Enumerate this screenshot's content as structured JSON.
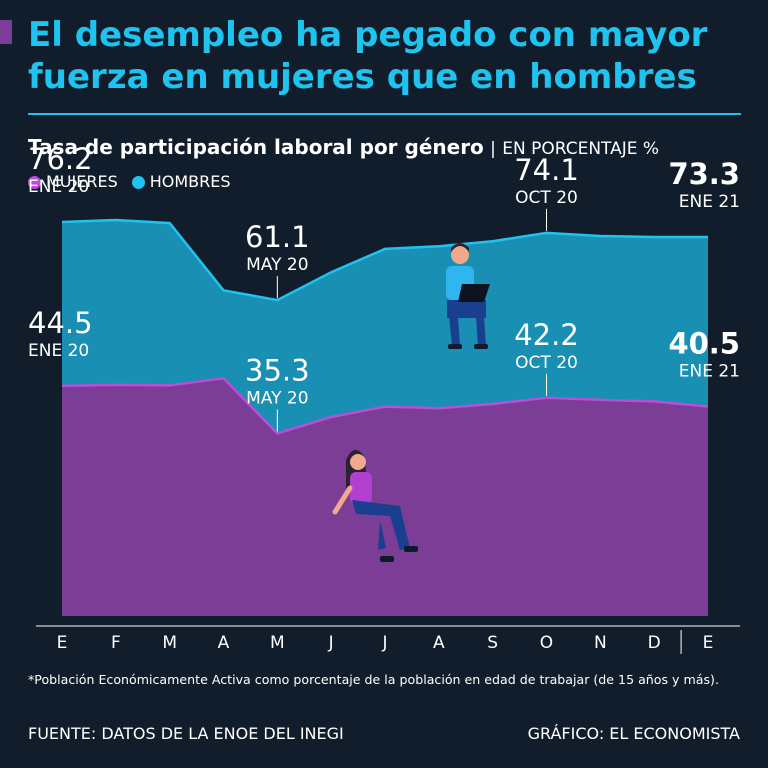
{
  "headline": {
    "line1": "El desempleo ha pegado con mayor",
    "line2": "fuerza en mujeres que en hombres"
  },
  "subtitle": {
    "main": "Tasa de participación laboral por género",
    "separator": "|",
    "unit": "EN PORCENTAJE %"
  },
  "colors": {
    "women": "#7c3d96",
    "women_line": "#b84fd6",
    "men": "#1a8fb4",
    "men_line": "#1fc3ef",
    "headline": "#1fc3ef",
    "background": "#121d2b"
  },
  "chart_data": {
    "type": "area",
    "x": [
      "E",
      "F",
      "M",
      "A",
      "M",
      "J",
      "J",
      "A",
      "S",
      "O",
      "N",
      "D",
      "E"
    ],
    "legend_position": "top-left",
    "series": [
      {
        "name": "MUJERES",
        "values": [
          44.5,
          44.7,
          44.6,
          46.0,
          35.3,
          38.5,
          40.5,
          40.2,
          41.0,
          42.2,
          41.8,
          41.5,
          40.5
        ]
      },
      {
        "name": "HOMBRES",
        "values": [
          76.2,
          76.6,
          76.0,
          63.0,
          61.1,
          66.5,
          71.0,
          71.5,
          72.5,
          74.1,
          73.5,
          73.3,
          73.3
        ]
      }
    ],
    "ylim": [
      0,
      100
    ],
    "grid": false,
    "annotations": [
      {
        "series": 1,
        "index": 0,
        "value": "76.2",
        "date": "ENE 20",
        "bold": false
      },
      {
        "series": 1,
        "index": 4,
        "value": "61.1",
        "date": "MAY 20",
        "bold": false
      },
      {
        "series": 1,
        "index": 9,
        "value": "74.1",
        "date": "OCT 20",
        "bold": false
      },
      {
        "series": 1,
        "index": 12,
        "value": "73.3",
        "date": "ENE 21",
        "bold": true
      },
      {
        "series": 0,
        "index": 0,
        "value": "44.5",
        "date": "ENE 20",
        "bold": false
      },
      {
        "series": 0,
        "index": 4,
        "value": "35.3",
        "date": "MAY 20",
        "bold": false
      },
      {
        "series": 0,
        "index": 9,
        "value": "42.2",
        "date": "OCT 20",
        "bold": false
      },
      {
        "series": 0,
        "index": 12,
        "value": "40.5",
        "date": "ENE 21",
        "bold": true
      }
    ]
  },
  "footnote": "*Población Económicamente Activa como porcentaje de la población en edad de trabajar (de 15 años y más).",
  "source": "FUENTE: DATOS DE LA ENOE DEL INEGI",
  "credit": "GRÁFICO: EL ECONOMISTA"
}
